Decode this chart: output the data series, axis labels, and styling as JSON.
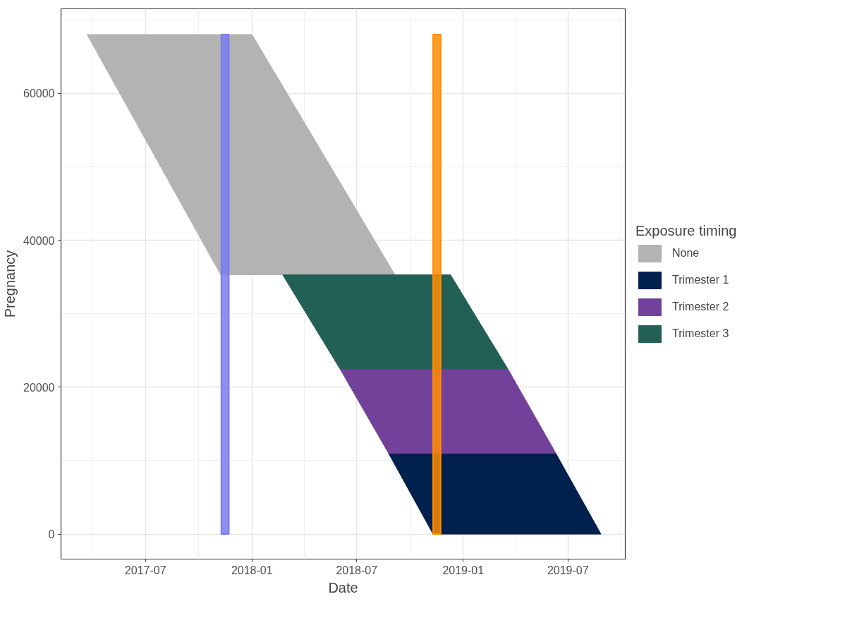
{
  "chart_data": {
    "type": "area",
    "xlabel": "Date",
    "ylabel": "Pregnancy",
    "legend_title": "Exposure timing",
    "legend": "right",
    "grid": true,
    "xlim": [
      "2017-02-05",
      "2019-10-08"
    ],
    "ylim": [
      -3400,
      71500
    ],
    "xticks": [
      {
        "value": "2017-07-01",
        "label": "2017-07"
      },
      {
        "value": "2018-01-01",
        "label": "2018-01"
      },
      {
        "value": "2018-07-01",
        "label": "2018-07"
      },
      {
        "value": "2019-01-01",
        "label": "2019-01"
      },
      {
        "value": "2019-07-01",
        "label": "2019-07"
      }
    ],
    "yticks": [
      0,
      20000,
      40000,
      60000
    ],
    "series": [
      {
        "name": "None",
        "color": "#b3b3b3",
        "x": [
          "2017-03-22",
          "2018-01-01",
          "2018-09-05",
          "2017-11-08"
        ],
        "values": [
          68000,
          68000,
          35300,
          35300
        ]
      },
      {
        "name": "Trimester 1",
        "color": "#00204d",
        "x": [
          "2018-08-25",
          "2019-06-10",
          "2019-08-27",
          "2018-11-10"
        ],
        "values": [
          11000,
          11000,
          0,
          0
        ]
      },
      {
        "name": "Trimester 2",
        "color": "#72419a",
        "x": [
          "2018-06-02",
          "2019-03-19",
          "2019-06-10",
          "2018-08-25"
        ],
        "values": [
          22500,
          22500,
          11000,
          11000
        ]
      },
      {
        "name": "Trimester 3",
        "color": "#225f55",
        "x": [
          "2018-02-23",
          "2018-12-10",
          "2019-03-19",
          "2018-06-02"
        ],
        "values": [
          35300,
          35300,
          22500,
          22500
        ]
      }
    ],
    "bands": [
      {
        "axis": "x",
        "from": "2017-11-09",
        "to": "2017-11-22",
        "color": "#7b7bf0"
      },
      {
        "axis": "x",
        "from": "2018-11-10",
        "to": "2018-11-23",
        "color": "#ff8c00"
      }
    ]
  }
}
